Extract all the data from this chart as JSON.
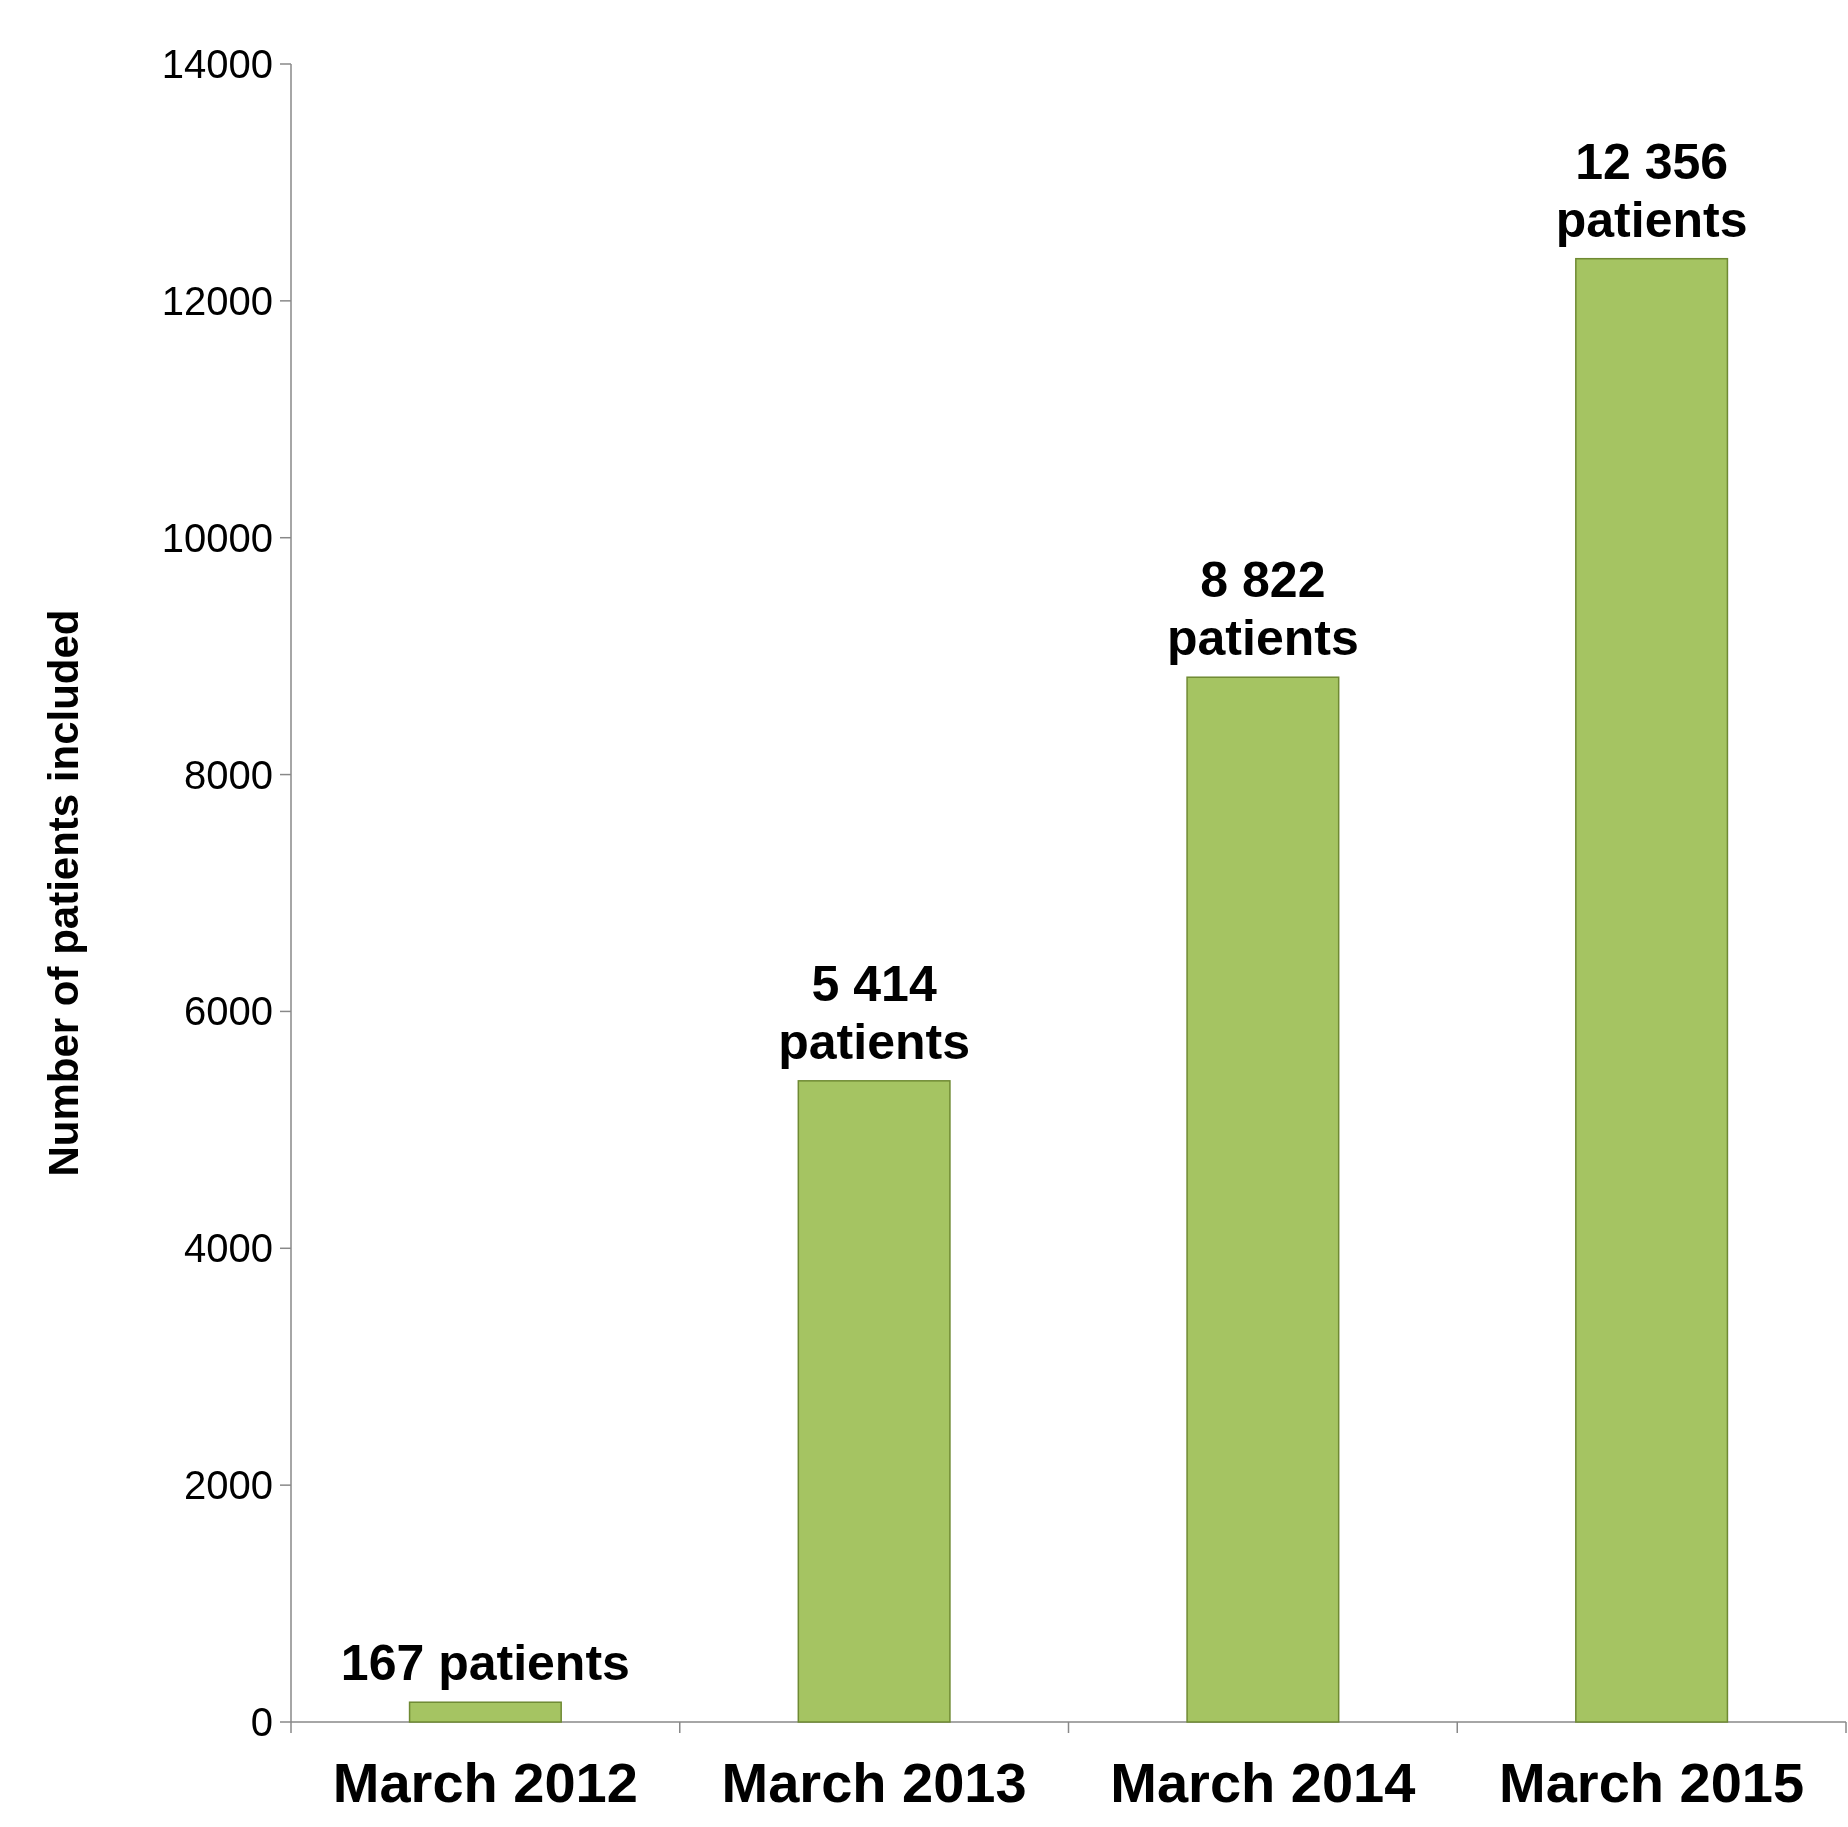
{
  "chart_data": {
    "type": "bar",
    "ylabel": "Number of patients included",
    "categories": [
      "March 2012",
      "March 2013",
      "March 2014",
      "March 2015"
    ],
    "values": [
      167,
      5414,
      8822,
      12356
    ],
    "color": "#a5c462",
    "value_labels": [
      "167 patients",
      "5 414\npatients",
      "8 822\npatients",
      "12 356\npatients"
    ],
    "ylim": [
      0,
      14000
    ],
    "yticks": [
      0,
      2000,
      4000,
      6000,
      8000,
      10000,
      12000,
      14000
    ]
  }
}
